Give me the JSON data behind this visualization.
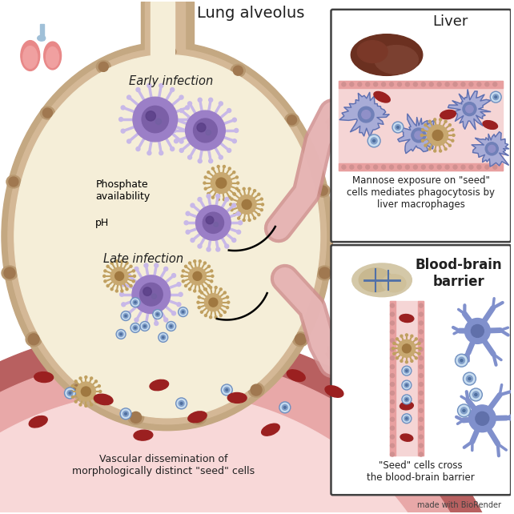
{
  "bg_color": "#ffffff",
  "title": "Lung alveolus",
  "liver_title": "Liver",
  "bbb_title": "Blood-brain\nbarrier",
  "liver_caption": "Mannose exposure on \"seed\"\ncells mediates phagocytosis by\nliver macrophages",
  "bbb_caption": "\"Seed\" cells cross\nthe blood-brain barrier",
  "vascular_caption": "Vascular dissemination of\nmorphologically distinct \"seed\" cells",
  "biorender_text": "made with BioRender",
  "early_infection_label": "Early infection",
  "late_infection_label": "Late infection",
  "phosphate_label": "Phosphate\navailability",
  "ph_label": "pH",
  "alveolus_fill": "#f5eed8",
  "alveolus_wall": "#c4a882",
  "alveolus_inner_wall": "#d4b896",
  "blood_vessel_fill": "#f0c8c8",
  "blood_vessel_wall": "#c87878",
  "blood_vessel_wall2": "#b06060",
  "rbc_color": "#9b2020",
  "crypto_early_fill": "#9b7fc7",
  "crypto_early_center": "#7b5fa7",
  "crypto_spike_color": "#c8b8e8",
  "crypto_late_fill": "#c8a870",
  "crypto_late_center": "#a07840",
  "seed_cell_fill": "#c8ddf0",
  "seed_cell_border": "#7090c0",
  "macrophage_fill": "#a0a8d8",
  "macrophage_border": "#6070b0",
  "neuron_fill": "#8090cc",
  "neuron_border": "#5060a0",
  "liver_color": "#6b3020",
  "pink_tube_color": "#e8a8a8",
  "arrow_blue": "#2050b0",
  "panel_border": "#404040",
  "text_color": "#202020"
}
